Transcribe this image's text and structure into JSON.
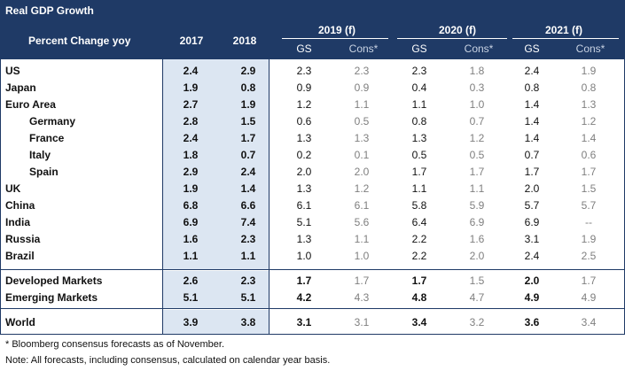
{
  "title": "Real GDP Growth",
  "subtitle": "Percent Change yoy",
  "years": [
    "2017",
    "2018",
    "2019 (f)",
    "2020 (f)",
    "2021 (f)"
  ],
  "gs_label": "GS",
  "cons_label": "Cons*",
  "rows": [
    {
      "label": "US",
      "v2017": "2.4",
      "v2018": "2.9",
      "gs2019": "2.3",
      "cons2019": "2.3",
      "gs2020": "2.3",
      "cons2020": "1.8",
      "gs2021": "2.4",
      "cons2021": "1.9"
    },
    {
      "label": "Japan",
      "v2017": "1.9",
      "v2018": "0.8",
      "gs2019": "0.9",
      "cons2019": "0.9",
      "gs2020": "0.4",
      "cons2020": "0.3",
      "gs2021": "0.8",
      "cons2021": "0.8"
    },
    {
      "label": "Euro Area",
      "v2017": "2.7",
      "v2018": "1.9",
      "gs2019": "1.2",
      "cons2019": "1.1",
      "gs2020": "1.1",
      "cons2020": "1.0",
      "gs2021": "1.4",
      "cons2021": "1.3"
    },
    {
      "label": "Germany",
      "v2017": "2.8",
      "v2018": "1.5",
      "gs2019": "0.6",
      "cons2019": "0.5",
      "gs2020": "0.8",
      "cons2020": "0.7",
      "gs2021": "1.4",
      "cons2021": "1.2"
    },
    {
      "label": "France",
      "v2017": "2.4",
      "v2018": "1.7",
      "gs2019": "1.3",
      "cons2019": "1.3",
      "gs2020": "1.3",
      "cons2020": "1.2",
      "gs2021": "1.4",
      "cons2021": "1.4"
    },
    {
      "label": "Italy",
      "v2017": "1.8",
      "v2018": "0.7",
      "gs2019": "0.2",
      "cons2019": "0.1",
      "gs2020": "0.5",
      "cons2020": "0.5",
      "gs2021": "0.7",
      "cons2021": "0.6"
    },
    {
      "label": "Spain",
      "v2017": "2.9",
      "v2018": "2.4",
      "gs2019": "2.0",
      "cons2019": "2.0",
      "gs2020": "1.7",
      "cons2020": "1.7",
      "gs2021": "1.7",
      "cons2021": "1.7"
    },
    {
      "label": "UK",
      "v2017": "1.9",
      "v2018": "1.4",
      "gs2019": "1.3",
      "cons2019": "1.2",
      "gs2020": "1.1",
      "cons2020": "1.1",
      "gs2021": "2.0",
      "cons2021": "1.5"
    },
    {
      "label": "China",
      "v2017": "6.8",
      "v2018": "6.6",
      "gs2019": "6.1",
      "cons2019": "6.1",
      "gs2020": "5.8",
      "cons2020": "5.9",
      "gs2021": "5.7",
      "cons2021": "5.7"
    },
    {
      "label": "India",
      "v2017": "6.9",
      "v2018": "7.4",
      "gs2019": "5.1",
      "cons2019": "5.6",
      "gs2020": "6.4",
      "cons2020": "6.9",
      "gs2021": "6.9",
      "cons2021": "--"
    },
    {
      "label": "Russia",
      "v2017": "1.6",
      "v2018": "2.3",
      "gs2019": "1.3",
      "cons2019": "1.1",
      "gs2020": "2.2",
      "cons2020": "1.6",
      "gs2021": "3.1",
      "cons2021": "1.9"
    },
    {
      "label": "Brazil",
      "v2017": "1.1",
      "v2018": "1.1",
      "gs2019": "1.0",
      "cons2019": "1.0",
      "gs2020": "2.2",
      "cons2020": "2.0",
      "gs2021": "2.4",
      "cons2021": "2.5"
    },
    {
      "label": "Developed Markets",
      "v2017": "2.6",
      "v2018": "2.3",
      "gs2019": "1.7",
      "cons2019": "1.7",
      "gs2020": "1.7",
      "cons2020": "1.5",
      "gs2021": "2.0",
      "cons2021": "1.7"
    },
    {
      "label": "Emerging Markets",
      "v2017": "5.1",
      "v2018": "5.1",
      "gs2019": "4.2",
      "cons2019": "4.3",
      "gs2020": "4.8",
      "cons2020": "4.7",
      "gs2021": "4.9",
      "cons2021": "4.9"
    },
    {
      "label": "World",
      "v2017": "3.9",
      "v2018": "3.8",
      "gs2019": "3.1",
      "cons2019": "3.1",
      "gs2020": "3.4",
      "cons2020": "3.2",
      "gs2021": "3.6",
      "cons2021": "3.4"
    }
  ],
  "footnotes": [
    "* Bloomberg consensus forecasts as of November.",
    "Note: All forecasts, including consensus, calculated on calendar year basis."
  ],
  "colors": {
    "header_bg": "#1f3a66",
    "shade": "#dce6f2",
    "cons_text": "#7f7f7f"
  }
}
